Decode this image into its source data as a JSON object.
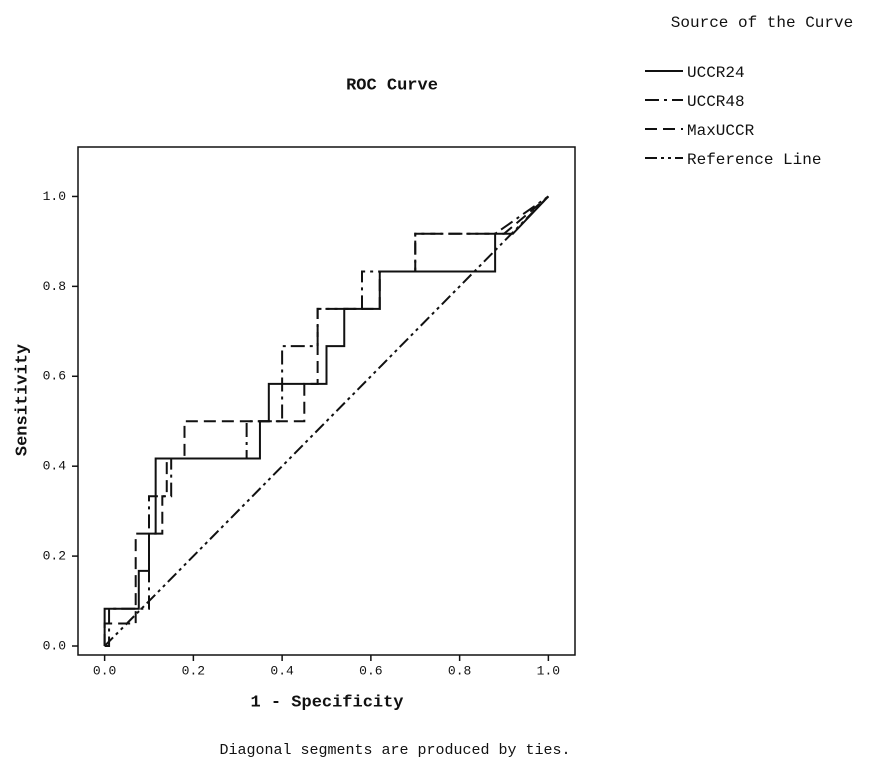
{
  "chart_data": {
    "type": "line",
    "title": "ROC Curve",
    "xlabel": "1 - Specificity",
    "ylabel": "Sensitivity",
    "legend_title": "Source of the Curve",
    "footnote": "Diagonal segments are produced by ties.",
    "legend": "right",
    "xlim": [
      -0.06,
      1.06
    ],
    "ylim": [
      -0.02,
      1.11
    ],
    "xticks": [
      {
        "value": 0,
        "label": "0.0"
      },
      0.2,
      0.4,
      0.6,
      0.8,
      {
        "value": 1,
        "label": "1.0"
      }
    ],
    "yticks": [
      {
        "value": 0,
        "label": "0.0"
      },
      0.2,
      0.4,
      0.6,
      0.8,
      {
        "value": 1,
        "label": "1.0"
      }
    ],
    "series": [
      {
        "name": "UCCR24",
        "color": "#111111",
        "dash": "solid",
        "x": [
          0,
          0,
          0.077,
          0.077,
          0.1,
          0.1,
          0.115,
          0.115,
          0.35,
          0.35,
          0.37,
          0.37,
          0.5,
          0.5,
          0.54,
          0.54,
          0.62,
          0.62,
          0.88,
          0.88,
          0.92,
          1
        ],
        "values": [
          0,
          0.083,
          0.083,
          0.167,
          0.167,
          0.25,
          0.25,
          0.417,
          0.417,
          0.5,
          0.5,
          0.583,
          0.583,
          0.667,
          0.667,
          0.75,
          0.75,
          0.833,
          0.833,
          0.917,
          0.917,
          1
        ]
      },
      {
        "name": "UCCR48",
        "color": "#111111",
        "dash": "dashdot",
        "x": [
          0,
          0.01,
          0.01,
          0.1,
          0.1,
          0.15,
          0.15,
          0.32,
          0.32,
          0.4,
          0.4,
          0.48,
          0.48,
          0.58,
          0.58,
          0.7,
          0.7,
          0.88,
          1
        ],
        "values": [
          0,
          0,
          0.083,
          0.083,
          0.333,
          0.333,
          0.417,
          0.417,
          0.5,
          0.5,
          0.667,
          0.667,
          0.75,
          0.75,
          0.833,
          0.833,
          0.917,
          0.917,
          1
        ]
      },
      {
        "name": "MaxUCCR",
        "color": "#111111",
        "dash": "dashed",
        "x": [
          0,
          0,
          0.07,
          0.07,
          0.13,
          0.13,
          0.14,
          0.14,
          0.18,
          0.18,
          0.45,
          0.45,
          0.48,
          0.48,
          0.62,
          0.62,
          0.7,
          0.7,
          0.9,
          1
        ],
        "values": [
          0,
          0.05,
          0.05,
          0.25,
          0.25,
          0.333,
          0.333,
          0.417,
          0.417,
          0.5,
          0.5,
          0.583,
          0.583,
          0.75,
          0.75,
          0.833,
          0.833,
          0.917,
          0.917,
          1
        ]
      },
      {
        "name": "Reference Line",
        "color": "#111111",
        "dash": "dashdotdot",
        "x": [
          0,
          1
        ],
        "values": [
          0,
          1
        ]
      }
    ]
  }
}
